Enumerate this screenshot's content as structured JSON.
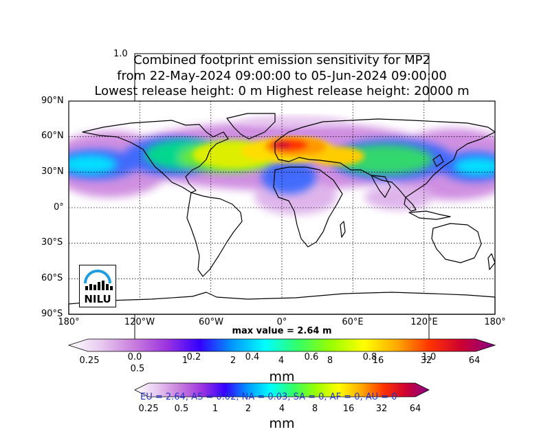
{
  "figure": {
    "faint_corner_tick": "1.0",
    "title_lines": [
      "Combined footprint emission sensitivity for MP2",
      "from 22-May-2024 09:00:00 to 05-Jun-2024 09:00:00",
      "Lowest release height: 0 m       Highest release height: 20000 m"
    ],
    "max_value_label": "max value = 2.64 m",
    "logo_text": "NILU",
    "region_summary": "EU = 2.64,  AS = 0.02,  NA = 0.03,  SA = 0,  AF = 0,  AU = 0"
  },
  "axes": {
    "lat_labels": [
      "90°N",
      "60°N",
      "30°N",
      "0°",
      "30°S",
      "60°S",
      "90°S"
    ],
    "lon_labels": [
      "180°",
      "120°W",
      "60°W",
      "0°",
      "60°E",
      "120°E",
      "180°"
    ]
  },
  "colorbar_main": {
    "tick_labels": [
      "0.25",
      "0.5",
      "1",
      "2",
      "4",
      "8",
      "16",
      "32",
      "64"
    ],
    "unit": "mm",
    "colors": [
      "#ffffff",
      "#e7c8ef",
      "#c87ddc",
      "#9b33e0",
      "#3300ff",
      "#0099ff",
      "#00ffff",
      "#33ff66",
      "#99ff00",
      "#ffff00",
      "#ffaa00",
      "#ff3300",
      "#cc0033",
      "#880088"
    ]
  },
  "colorbar_faint": {
    "tick_labels": [
      "0.0",
      "0.2",
      "0.4",
      "0.6",
      "0.8",
      "1.0"
    ]
  },
  "colorbar_second": {
    "tick_labels": [
      "0.25",
      "0.5",
      "1",
      "2",
      "4",
      "8",
      "16",
      "32",
      "64"
    ],
    "unit": "mm"
  }
}
